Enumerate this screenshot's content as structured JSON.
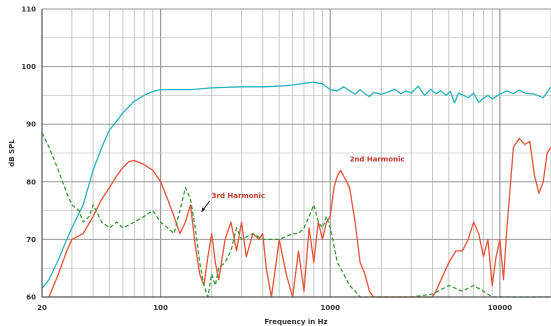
{
  "chart_data": {
    "type": "line",
    "title": "",
    "xlabel": "Frequency in Hz",
    "ylabel": "dB SPL",
    "x_scale": "log",
    "xlim": [
      20,
      20000
    ],
    "ylim": [
      60,
      110
    ],
    "grid": true,
    "x_tick_labels": [
      {
        "value": 20,
        "label": "20"
      },
      {
        "value": 100,
        "label": "100"
      },
      {
        "value": 1000,
        "label": "1000"
      },
      {
        "value": 10000,
        "label": "10000"
      }
    ],
    "y_tick_labels": [
      {
        "value": 60,
        "label": "60"
      },
      {
        "value": 70,
        "label": "70"
      },
      {
        "value": 80,
        "label": "80"
      },
      {
        "value": 90,
        "label": "90"
      },
      {
        "value": 100,
        "label": "100"
      },
      {
        "value": 110,
        "label": "110"
      }
    ],
    "colors": {
      "fundamental": "#2bb3c0",
      "second_harmonic": "#e8533a",
      "third_harmonic": "#3a9a3a",
      "grid": "#bdbdbd",
      "axis": "#555555"
    },
    "annotations": [
      {
        "text": "2nd Harmonic",
        "x": 1300,
        "y": 83.5
      },
      {
        "text": "3rd Harmonic",
        "x": 200,
        "y": 77.2
      }
    ],
    "series": [
      {
        "key": "fundamental",
        "style": "solid",
        "points": [
          [
            20,
            61.5
          ],
          [
            22,
            63
          ],
          [
            25,
            66.5
          ],
          [
            28,
            70
          ],
          [
            30,
            72
          ],
          [
            35,
            76
          ],
          [
            40,
            82
          ],
          [
            45,
            86
          ],
          [
            50,
            89
          ],
          [
            55,
            90.5
          ],
          [
            60,
            92
          ],
          [
            70,
            94
          ],
          [
            80,
            95
          ],
          [
            90,
            95.7
          ],
          [
            100,
            96
          ],
          [
            120,
            96
          ],
          [
            150,
            96
          ],
          [
            200,
            96.3
          ],
          [
            300,
            96.5
          ],
          [
            400,
            96.5
          ],
          [
            500,
            96.6
          ],
          [
            600,
            96.8
          ],
          [
            700,
            97.1
          ],
          [
            800,
            97.3
          ],
          [
            900,
            97
          ],
          [
            1000,
            96
          ],
          [
            1100,
            95.8
          ],
          [
            1200,
            96.5
          ],
          [
            1300,
            95.8
          ],
          [
            1400,
            95.2
          ],
          [
            1500,
            96
          ],
          [
            1600,
            95.3
          ],
          [
            1700,
            94.8
          ],
          [
            1800,
            95.5
          ],
          [
            2000,
            95.2
          ],
          [
            2200,
            95.6
          ],
          [
            2400,
            96.1
          ],
          [
            2600,
            95.3
          ],
          [
            2800,
            95.8
          ],
          [
            3000,
            95.4
          ],
          [
            3300,
            96.6
          ],
          [
            3600,
            95
          ],
          [
            3900,
            96.1
          ],
          [
            4200,
            95.3
          ],
          [
            4500,
            95.8
          ],
          [
            4800,
            95
          ],
          [
            5100,
            95.7
          ],
          [
            5400,
            93.7
          ],
          [
            5700,
            95.4
          ],
          [
            6000,
            95.1
          ],
          [
            6500,
            94.6
          ],
          [
            7000,
            95.4
          ],
          [
            7500,
            93.8
          ],
          [
            8000,
            94.5
          ],
          [
            8500,
            95
          ],
          [
            9000,
            94.4
          ],
          [
            10000,
            95.2
          ],
          [
            11000,
            95.8
          ],
          [
            12000,
            95.3
          ],
          [
            13000,
            95.9
          ],
          [
            14000,
            95.4
          ],
          [
            16000,
            95.2
          ],
          [
            18000,
            94.6
          ],
          [
            20000,
            96.5
          ]
        ]
      },
      {
        "key": "second_harmonic",
        "style": "solid",
        "points": [
          [
            22,
            60
          ],
          [
            25,
            64
          ],
          [
            28,
            68
          ],
          [
            30,
            70
          ],
          [
            35,
            71
          ],
          [
            40,
            74
          ],
          [
            45,
            77
          ],
          [
            50,
            79
          ],
          [
            55,
            81
          ],
          [
            60,
            82.5
          ],
          [
            65,
            83.5
          ],
          [
            70,
            83.7
          ],
          [
            80,
            83
          ],
          [
            90,
            82
          ],
          [
            100,
            80
          ],
          [
            110,
            77
          ],
          [
            120,
            74
          ],
          [
            130,
            71
          ],
          [
            140,
            73
          ],
          [
            150,
            76
          ],
          [
            160,
            69
          ],
          [
            170,
            64
          ],
          [
            180,
            62
          ],
          [
            190,
            67
          ],
          [
            200,
            71
          ],
          [
            210,
            66
          ],
          [
            220,
            63
          ],
          [
            240,
            70
          ],
          [
            260,
            73
          ],
          [
            280,
            68
          ],
          [
            300,
            73
          ],
          [
            320,
            67
          ],
          [
            350,
            71
          ],
          [
            380,
            70
          ],
          [
            400,
            71
          ],
          [
            420,
            65
          ],
          [
            450,
            60
          ],
          [
            480,
            66
          ],
          [
            500,
            70
          ],
          [
            550,
            64
          ],
          [
            600,
            60
          ],
          [
            650,
            68
          ],
          [
            700,
            61
          ],
          [
            750,
            72
          ],
          [
            800,
            66
          ],
          [
            850,
            73
          ],
          [
            900,
            70
          ],
          [
            950,
            73
          ],
          [
            1000,
            74
          ],
          [
            1050,
            79
          ],
          [
            1100,
            81
          ],
          [
            1150,
            82
          ],
          [
            1200,
            81
          ],
          [
            1300,
            79
          ],
          [
            1400,
            73
          ],
          [
            1500,
            66
          ],
          [
            1600,
            64
          ],
          [
            1700,
            61
          ],
          [
            1800,
            60
          ],
          [
            2000,
            60
          ],
          [
            3000,
            60
          ],
          [
            4000,
            60
          ],
          [
            4200,
            61
          ],
          [
            4500,
            63
          ],
          [
            5000,
            66
          ],
          [
            5500,
            68
          ],
          [
            6000,
            68
          ],
          [
            6500,
            70
          ],
          [
            7000,
            73
          ],
          [
            7500,
            71
          ],
          [
            8000,
            67
          ],
          [
            8500,
            70
          ],
          [
            9000,
            62
          ],
          [
            9500,
            67
          ],
          [
            10000,
            70
          ],
          [
            10500,
            63
          ],
          [
            11000,
            72
          ],
          [
            11500,
            79
          ],
          [
            12000,
            86
          ],
          [
            13000,
            87.5
          ],
          [
            14000,
            86.5
          ],
          [
            15000,
            87
          ],
          [
            16000,
            81
          ],
          [
            17000,
            78
          ],
          [
            18000,
            80
          ],
          [
            19000,
            85
          ],
          [
            20000,
            86
          ]
        ]
      },
      {
        "key": "third_harmonic",
        "style": "dashed",
        "points": [
          [
            20,
            88.5
          ],
          [
            22,
            86
          ],
          [
            25,
            82
          ],
          [
            28,
            78
          ],
          [
            30,
            76
          ],
          [
            33,
            75
          ],
          [
            35,
            73
          ],
          [
            38,
            74
          ],
          [
            40,
            76
          ],
          [
            45,
            73
          ],
          [
            50,
            72
          ],
          [
            55,
            73
          ],
          [
            60,
            72
          ],
          [
            70,
            73
          ],
          [
            80,
            74
          ],
          [
            90,
            75
          ],
          [
            100,
            73
          ],
          [
            110,
            72
          ],
          [
            120,
            71
          ],
          [
            130,
            75
          ],
          [
            140,
            79
          ],
          [
            150,
            77
          ],
          [
            160,
            72
          ],
          [
            170,
            66
          ],
          [
            180,
            62
          ],
          [
            190,
            60
          ],
          [
            200,
            64
          ],
          [
            210,
            62
          ],
          [
            220,
            65
          ],
          [
            240,
            66
          ],
          [
            260,
            68
          ],
          [
            280,
            72
          ],
          [
            300,
            70
          ],
          [
            350,
            71
          ],
          [
            400,
            70
          ],
          [
            450,
            70
          ],
          [
            500,
            70
          ],
          [
            550,
            70.5
          ],
          [
            600,
            71
          ],
          [
            650,
            71
          ],
          [
            700,
            72
          ],
          [
            750,
            74
          ],
          [
            800,
            76
          ],
          [
            850,
            73
          ],
          [
            900,
            72
          ],
          [
            950,
            74
          ],
          [
            1000,
            72
          ],
          [
            1050,
            69
          ],
          [
            1100,
            66
          ],
          [
            1200,
            64
          ],
          [
            1300,
            62
          ],
          [
            1400,
            61
          ],
          [
            1500,
            60
          ],
          [
            2000,
            60
          ],
          [
            3000,
            60
          ],
          [
            4000,
            60.5
          ],
          [
            5000,
            62
          ],
          [
            6000,
            61
          ],
          [
            7000,
            62
          ],
          [
            8000,
            61
          ],
          [
            9000,
            60
          ],
          [
            10000,
            60
          ],
          [
            20000,
            60
          ]
        ]
      }
    ]
  }
}
